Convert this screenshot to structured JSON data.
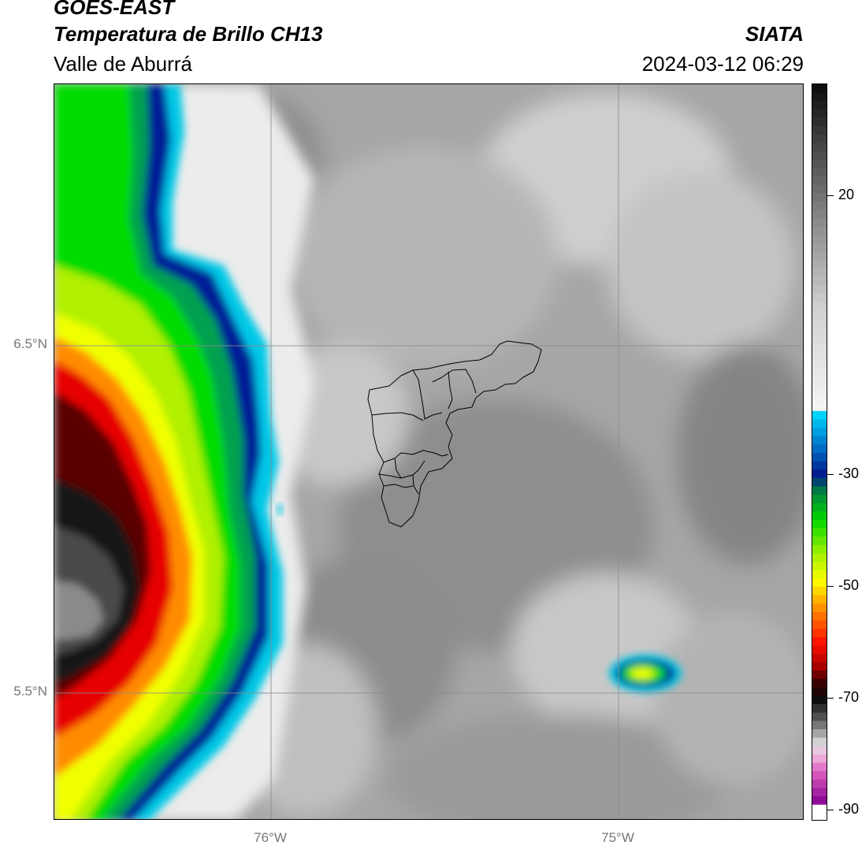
{
  "header": {
    "satellite": "GOES-EAST",
    "product": "Temperatura de Brillo CH13",
    "region": "Valle de Aburrá",
    "organization": "SIATA",
    "datetime": "2024-03-12 06:29"
  },
  "map": {
    "lat_labels": [
      "6.5°N",
      "5.5°N"
    ],
    "lon_labels": [
      "76°W",
      "75°W"
    ],
    "colors": {
      "cloud_free_gray": "#a9a9a9",
      "warm_cloud_light": "#e6e6e6",
      "cold_cyan": "#00c8e6",
      "cold_blue": "#001e96",
      "green": "#00dc00",
      "yellow": "#f0ff00",
      "orange": "#ff8c00",
      "red": "#e60000",
      "dark_red": "#5a0000",
      "black": "#141414",
      "outline": "#000000",
      "grid": "#8c8c8c"
    }
  },
  "colorbar": {
    "ticks": [
      "20",
      "-30",
      "-50",
      "-70",
      "-90"
    ],
    "tick_values": [
      20,
      -30,
      -50,
      -70,
      -90
    ],
    "min": -92,
    "max": 40,
    "stops": [
      {
        "value": 40,
        "color": "#0a0a0a"
      },
      {
        "value": 30,
        "color": "#404040"
      },
      {
        "value": 15,
        "color": "#8c8c8c"
      },
      {
        "value": 0,
        "color": "#d0d0d0"
      },
      {
        "value": -18,
        "color": "#f5f5f5"
      },
      {
        "value": -18.5,
        "color": "#00e0ff"
      },
      {
        "value": -24,
        "color": "#0080d0"
      },
      {
        "value": -30,
        "color": "#001a8c"
      },
      {
        "value": -33,
        "color": "#008040"
      },
      {
        "value": -38,
        "color": "#00d800"
      },
      {
        "value": -44,
        "color": "#a0f000"
      },
      {
        "value": -49,
        "color": "#ffff00"
      },
      {
        "value": -54,
        "color": "#ff8c00"
      },
      {
        "value": -60,
        "color": "#ff1000"
      },
      {
        "value": -64,
        "color": "#b00000"
      },
      {
        "value": -67,
        "color": "#400000"
      },
      {
        "value": -70,
        "color": "#080808"
      },
      {
        "value": -74,
        "color": "#606060"
      },
      {
        "value": -78,
        "color": "#d8d8d8"
      },
      {
        "value": -80,
        "color": "#f0c0e0"
      },
      {
        "value": -83,
        "color": "#e060c0"
      },
      {
        "value": -89,
        "color": "#800090"
      },
      {
        "value": -89.5,
        "color": "#ffffff"
      },
      {
        "value": -92,
        "color": "#ffffff"
      }
    ]
  }
}
